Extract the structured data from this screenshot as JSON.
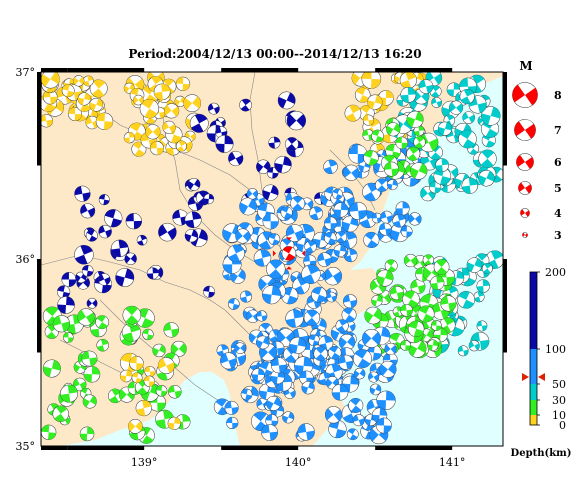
{
  "title": "Period:2004/12/13 00:00--2014/12/13 16:20",
  "map": {
    "lon_range": [
      138.33,
      141.33
    ],
    "lat_range": [
      35.0,
      37.0
    ],
    "lon_ticks": [
      139,
      140,
      141
    ],
    "lat_ticks": [
      35,
      36,
      37
    ],
    "lon_tick_labels": [
      "139°",
      "140°",
      "141°"
    ],
    "lat_tick_labels": [
      "35°",
      "36°",
      "37°"
    ],
    "land_color": "#fde8c8",
    "sea_color": "#e0ffff",
    "border_color": "#888888",
    "highlight_event": {
      "lon": 139.94,
      "lat": 36.03,
      "magnitude": 4.5,
      "color": "#ff0000"
    }
  },
  "magnitude_legend": {
    "title": "M",
    "items": [
      {
        "label": "8",
        "magnitude": 8
      },
      {
        "label": "7",
        "magnitude": 7
      },
      {
        "label": "6",
        "magnitude": 6
      },
      {
        "label": "5",
        "magnitude": 5
      },
      {
        "label": "4",
        "magnitude": 4
      },
      {
        "label": "3",
        "magnitude": 3
      }
    ],
    "color": "#ff0000"
  },
  "depth_scale": {
    "title": "Depth(km)",
    "tick_labels": [
      "0",
      "10",
      "30",
      "50",
      "100",
      "200"
    ],
    "tick_values": [
      0,
      10,
      30,
      50,
      100,
      200
    ],
    "bands": [
      {
        "from": 0,
        "to": 10,
        "color": "#ffd21f"
      },
      {
        "from": 10,
        "to": 30,
        "color": "#33ee22"
      },
      {
        "from": 30,
        "to": 50,
        "color": "#00cccc"
      },
      {
        "from": 50,
        "to": 100,
        "color": "#1e90ff"
      },
      {
        "from": 100,
        "to": 200,
        "color": "#0a0aa8"
      }
    ],
    "marker_depth": 60,
    "marker_color": "#dd2200"
  },
  "clusters": [
    {
      "name": "northwest-shallow",
      "color": "#ffd21f",
      "lon": [
        138.35,
        138.75
      ],
      "lat": [
        36.72,
        36.97
      ],
      "count": 30,
      "seed": 11
    },
    {
      "name": "west-border-shallow",
      "color": "#ffd21f",
      "lon": [
        138.95,
        139.15
      ],
      "lat": [
        36.6,
        36.97
      ],
      "count": 14,
      "seed": 12
    },
    {
      "name": "north-central-shallow",
      "color": "#ffd21f",
      "lon": [
        138.9,
        139.35
      ],
      "lat": [
        36.55,
        36.97
      ],
      "count": 26,
      "seed": 13
    },
    {
      "name": "northeast-shallow",
      "color": "#ffd21f",
      "lon": [
        140.35,
        140.8
      ],
      "lat": [
        36.55,
        36.97
      ],
      "count": 26,
      "seed": 14
    },
    {
      "name": "west-deep",
      "color": "#0a0aa8",
      "lon": [
        138.45,
        139.45
      ],
      "lat": [
        35.75,
        36.35
      ],
      "count": 34,
      "seed": 21
    },
    {
      "name": "north-deep",
      "color": "#0a0aa8",
      "lon": [
        139.3,
        140.15
      ],
      "lat": [
        36.3,
        36.85
      ],
      "count": 26,
      "seed": 22
    },
    {
      "name": "central-intermediate",
      "color": "#1e90ff",
      "lon": [
        139.55,
        140.35
      ],
      "lat": [
        35.35,
        36.35
      ],
      "count": 150,
      "seed": 31
    },
    {
      "name": "northeast-intermediate",
      "color": "#1e90ff",
      "lon": [
        140.2,
        140.8
      ],
      "lat": [
        36.1,
        36.6
      ],
      "count": 50,
      "seed": 32
    },
    {
      "name": "offshore-intermediate",
      "color": "#00cccc",
      "lon": [
        140.6,
        141.3
      ],
      "lat": [
        36.35,
        36.97
      ],
      "count": 60,
      "seed": 41
    },
    {
      "name": "offshore-mid",
      "color": "#00cccc",
      "lon": [
        140.85,
        141.3
      ],
      "lat": [
        35.5,
        36.0
      ],
      "count": 30,
      "seed": 42
    },
    {
      "name": "east-shallow",
      "color": "#33ee22",
      "lon": [
        140.45,
        141.0
      ],
      "lat": [
        35.5,
        36.0
      ],
      "count": 60,
      "seed": 51
    },
    {
      "name": "south-shallow",
      "color": "#33ee22",
      "lon": [
        138.35,
        139.35
      ],
      "lat": [
        35.05,
        35.7
      ],
      "count": 55,
      "seed": 52
    },
    {
      "name": "northeast-land-shallow",
      "color": "#33ee22",
      "lon": [
        140.45,
        140.85
      ],
      "lat": [
        36.45,
        36.75
      ],
      "count": 18,
      "seed": 53
    },
    {
      "name": "south-intermediate",
      "color": "#1e90ff",
      "lon": [
        139.45,
        140.6
      ],
      "lat": [
        35.05,
        35.6
      ],
      "count": 80,
      "seed": 61
    },
    {
      "name": "southwest-shallow",
      "color": "#ffd21f",
      "lon": [
        138.85,
        139.2
      ],
      "lat": [
        35.05,
        35.45
      ],
      "count": 10,
      "seed": 62
    }
  ]
}
